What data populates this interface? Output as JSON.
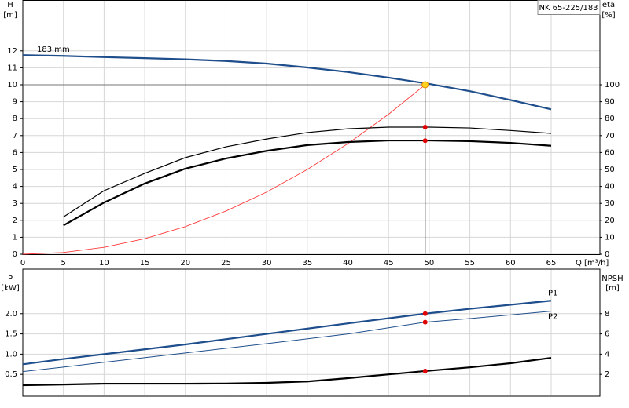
{
  "chart_data": [
    {
      "type": "line",
      "legend_text": "NK 65-225/183",
      "y_label": [
        "H",
        "[m]"
      ],
      "y2_label": [
        "eta",
        "[%]"
      ],
      "x_label": "Q [m³/h]",
      "xlim": [
        0,
        71
      ],
      "ylim": [
        0,
        15
      ],
      "y2lim": [
        0,
        150
      ],
      "xticks": [
        0,
        5,
        10,
        15,
        20,
        25,
        30,
        35,
        40,
        45,
        50,
        55,
        60,
        65
      ],
      "yticks": [
        0,
        1,
        2,
        3,
        4,
        5,
        6,
        7,
        8,
        9,
        10,
        11,
        12
      ],
      "y2ticks": [
        0,
        10,
        20,
        30,
        40,
        50,
        60,
        70,
        80,
        90,
        100
      ],
      "grid": true,
      "series": [
        {
          "name": "183 mm",
          "color": "#1f4e8c",
          "width": 2.2,
          "x": [
            0,
            5,
            10,
            15,
            20,
            25,
            30,
            35,
            40,
            45,
            50,
            55,
            60,
            65
          ],
          "values": [
            11.75,
            11.7,
            11.63,
            11.57,
            11.5,
            11.4,
            11.25,
            11.02,
            10.75,
            10.42,
            10.05,
            9.62,
            9.1,
            8.55
          ]
        },
        {
          "color": "#ff3b3b",
          "width": 0.9,
          "x": [
            0,
            5,
            10,
            15,
            20,
            25,
            30,
            35,
            40,
            45,
            49.5
          ],
          "values": [
            0,
            0.1,
            0.41,
            0.92,
            1.63,
            2.55,
            3.67,
            5.0,
            6.53,
            8.26,
            10
          ]
        },
        {
          "color": "#000000",
          "width": 1.2,
          "axis": "y2",
          "x": [
            5,
            10,
            15,
            20,
            25,
            30,
            35,
            40,
            45,
            50,
            55,
            60,
            65
          ],
          "values": [
            22,
            37.5,
            47.7,
            57,
            63.4,
            68,
            71.8,
            74,
            75,
            75,
            74.5,
            73,
            71.3
          ]
        },
        {
          "color": "#000000",
          "width": 2.2,
          "axis": "y2",
          "x": [
            5,
            10,
            15,
            20,
            25,
            30,
            35,
            40,
            45,
            50,
            55,
            60,
            65
          ],
          "values": [
            17,
            30.5,
            41.7,
            50.5,
            56.5,
            61,
            64.4,
            66.2,
            67.1,
            67.1,
            66.7,
            65.7,
            64
          ]
        }
      ],
      "duty": {
        "x": 49.5,
        "y": 10,
        "eta": [
          75,
          67
        ]
      }
    },
    {
      "type": "line",
      "y_label": [
        "P",
        "[kW]"
      ],
      "y2_label": [
        "NPSH",
        "[m]"
      ],
      "xlim": [
        0,
        71
      ],
      "ylim": [
        0,
        3.1
      ],
      "y2lim": [
        0,
        12.4
      ],
      "yticks": [
        0.5,
        {
          "value": 1,
          "label": "1.0"
        },
        1.5,
        {
          "value": 2,
          "label": "2.0"
        }
      ],
      "y2ticks": [
        2,
        4,
        6,
        8
      ],
      "grid": true,
      "series": [
        {
          "name": "P1",
          "color": "#1f4e8c",
          "width": 2.2,
          "x": [
            0,
            5,
            10,
            20,
            30,
            40,
            49.5,
            55,
            65
          ],
          "values": [
            0.75,
            0.88,
            1.0,
            1.24,
            1.5,
            1.76,
            2.0,
            2.12,
            2.32
          ]
        },
        {
          "name": "P2",
          "color": "#1f4e8c",
          "width": 1,
          "x": [
            0,
            5,
            10,
            20,
            30,
            40,
            49.5,
            55,
            65
          ],
          "values": [
            0.57,
            0.68,
            0.8,
            1.03,
            1.26,
            1.5,
            1.79,
            1.88,
            2.06
          ]
        },
        {
          "color": "#000000",
          "width": 2.2,
          "axis": "y2",
          "x": [
            0,
            5,
            10,
            20,
            25,
            30,
            35,
            40,
            45,
            49.5,
            55,
            60,
            65
          ],
          "values": [
            0.93,
            1.0,
            1.08,
            1.08,
            1.1,
            1.16,
            1.3,
            1.63,
            2.0,
            2.33,
            2.7,
            3.1,
            3.64
          ]
        }
      ],
      "duty": {
        "x": 49.5,
        "p": [
          2.0,
          1.79
        ],
        "npsh": 2.33
      }
    }
  ]
}
